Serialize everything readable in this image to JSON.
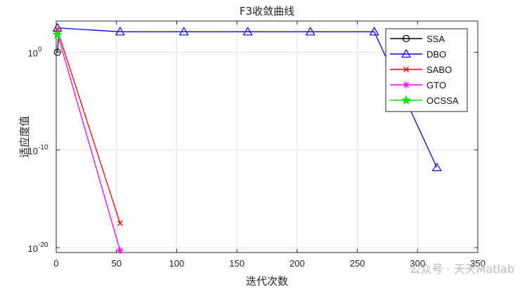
{
  "chart_data": {
    "type": "line",
    "title": "F3收敛曲线",
    "xlabel": "迭代次数",
    "ylabel": "适应度值",
    "xlim": [
      0,
      350
    ],
    "xticks": [
      0,
      50,
      100,
      150,
      200,
      250,
      300,
      350
    ],
    "ylim_log10": [
      -20.5,
      3.2
    ],
    "yticks_log10": [
      0,
      -10,
      -20
    ],
    "ytick_labels": [
      {
        "base": "10",
        "exp": "0"
      },
      {
        "base": "10",
        "exp": "-10"
      },
      {
        "base": "10",
        "exp": "-20"
      }
    ],
    "grid": true,
    "legend_position": "top-right",
    "series": [
      {
        "name": "SSA",
        "color": "#000000",
        "marker": "circle",
        "x": [
          1,
          2
        ],
        "log10_y": [
          0.0,
          1.7
        ]
      },
      {
        "name": "DBO",
        "color": "#0000ff",
        "marker": "triangle",
        "x": [
          1,
          53,
          106,
          159,
          211,
          264,
          316
        ],
        "log10_y": [
          2.5,
          2.1,
          2.1,
          2.1,
          2.1,
          2.1,
          -11.8
        ]
      },
      {
        "name": "SABO",
        "color": "#ff0000",
        "marker": "x",
        "x": [
          1,
          53
        ],
        "log10_y": [
          2.3,
          -17.5
        ]
      },
      {
        "name": "GTO",
        "color": "#ff00ff",
        "marker": "star",
        "x": [
          1,
          53
        ],
        "log10_y": [
          1.9,
          -20.3
        ]
      },
      {
        "name": "OCSSA",
        "color": "#00ee00",
        "marker": "pentagram",
        "x": [
          1
        ],
        "log10_y": [
          1.8
        ]
      }
    ]
  },
  "watermark": "公众号 · 天天Matlab"
}
